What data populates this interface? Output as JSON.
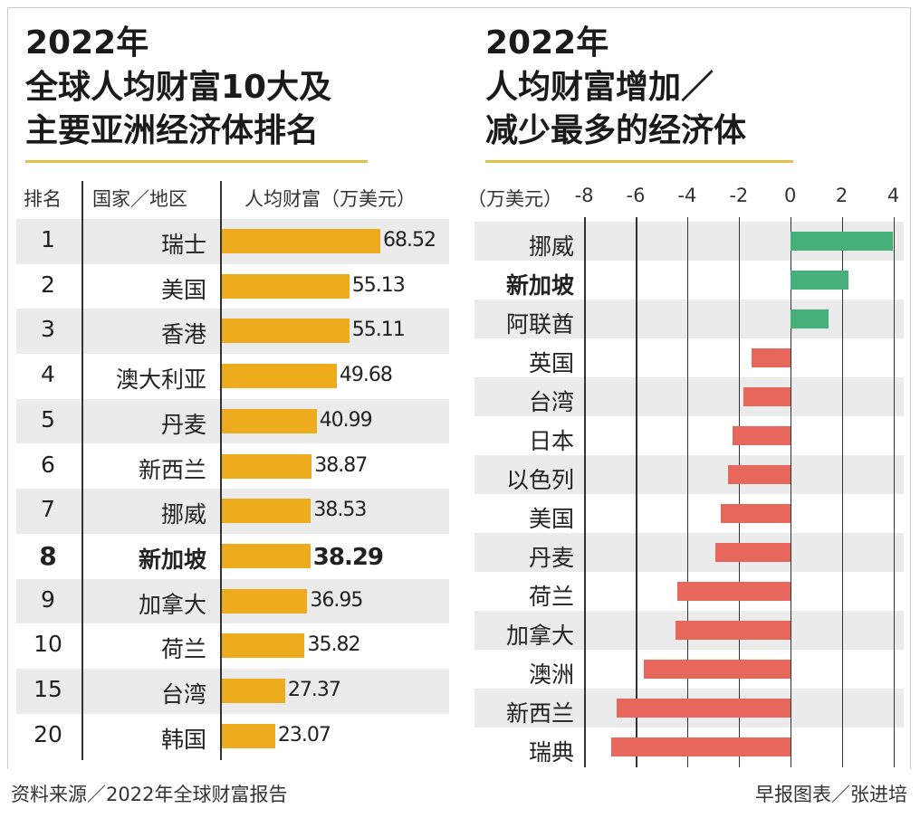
{
  "left": {
    "title_lines": [
      "2022年",
      "全球人均财富10大及",
      "主要亚洲经济体排名"
    ],
    "headers": {
      "rank": "排名",
      "country": "国家／地区",
      "wealth": "人均财富（万美元）"
    },
    "highlight": "新加坡"
  },
  "right": {
    "title_lines": [
      "2022年",
      "人均财富增加／",
      "减少最多的经济体"
    ],
    "unit_label": "（万美元）",
    "highlight": "新加坡"
  },
  "footer": {
    "source": "资料来源／2022年全球财富报告",
    "credit": "早报图表／张进培"
  },
  "colors": {
    "wealth_bar": "#efab1e",
    "increase": "#45b07a",
    "decrease": "#e8675d",
    "stripe": "#ebebeb",
    "title_rule": "#e2c04a"
  },
  "chart_data": [
    {
      "type": "bar",
      "orientation": "horizontal",
      "title": "2022年 全球人均财富10大及主要亚洲经济体排名",
      "columns": [
        "排名",
        "国家／地区",
        "人均财富（万美元）"
      ],
      "ranks": [
        "1",
        "2",
        "3",
        "4",
        "5",
        "6",
        "7",
        "8",
        "9",
        "10",
        "15",
        "20"
      ],
      "categories": [
        "瑞士",
        "美国",
        "香港",
        "澳大利亚",
        "丹麦",
        "新西兰",
        "挪威",
        "新加坡",
        "加拿大",
        "荷兰",
        "台湾",
        "韩国"
      ],
      "values": [
        68.52,
        55.13,
        55.11,
        49.68,
        40.99,
        38.87,
        38.53,
        38.29,
        36.95,
        35.82,
        27.37,
        23.07
      ],
      "value_labels": [
        "68.52",
        "55.13",
        "55.11",
        "49.68",
        "40.99",
        "38.87",
        "38.53",
        "38.29",
        "36.95",
        "35.82",
        "27.37",
        "23.07"
      ],
      "xlim": [
        0,
        70
      ]
    },
    {
      "type": "bar",
      "orientation": "horizontal",
      "title": "2022年 人均财富增加／减少最多的经济体",
      "unit": "万美元",
      "categories": [
        "挪威",
        "新加坡",
        "阿联酋",
        "英国",
        "台湾",
        "日本",
        "以色列",
        "美国",
        "丹麦",
        "荷兰",
        "加拿大",
        "澳洲",
        "新西兰",
        "瑞典"
      ],
      "values": [
        4.0,
        2.25,
        1.5,
        -1.5,
        -1.8,
        -2.25,
        -2.4,
        -2.7,
        -2.9,
        -4.4,
        -4.45,
        -5.7,
        -6.75,
        -6.95
      ],
      "xlim": [
        -8,
        4
      ],
      "xticks": [
        "-8",
        "-6",
        "-4",
        "-2",
        "0",
        "2",
        "4"
      ],
      "grid": true
    }
  ]
}
